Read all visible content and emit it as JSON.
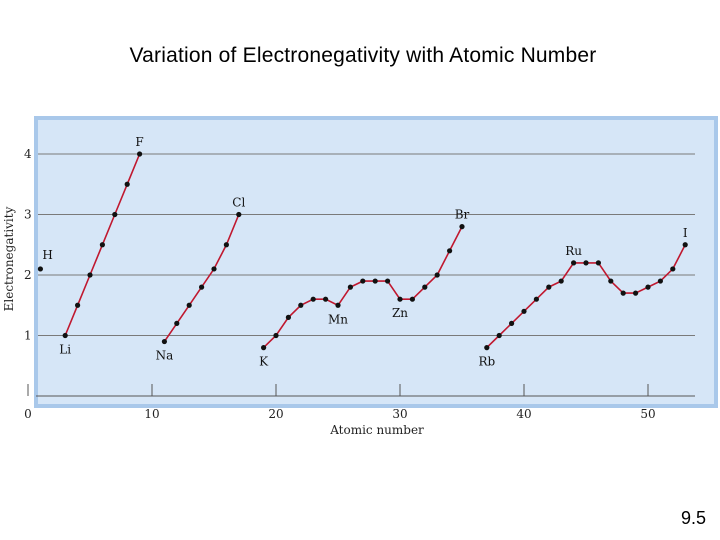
{
  "slide": {
    "title": "Variation of Electronegativity with Atomic Number",
    "number": "9.5"
  },
  "chart_data": {
    "type": "line",
    "title": "Variation of Electronegativity with Atomic Number",
    "xlabel": "Atomic number",
    "ylabel": "Electronegativity",
    "xlim": [
      0,
      55
    ],
    "ylim": [
      0,
      4.4
    ],
    "xticks": [
      0,
      10,
      20,
      30,
      40,
      50
    ],
    "yticks": [
      1,
      2,
      3,
      4
    ],
    "grid": true,
    "colors": {
      "plot_background": "#d6e6f7",
      "plot_border": "#a9c8ea",
      "line": "#c0182f",
      "point": "#111111",
      "grid": "#7a7a7a"
    },
    "isolated_points": [
      {
        "x": 1,
        "y": 2.1
      }
    ],
    "segments": [
      {
        "x": [
          3,
          4,
          5,
          6,
          7,
          8,
          9
        ],
        "y": [
          1.0,
          1.5,
          2.0,
          2.5,
          3.0,
          3.5,
          4.0
        ]
      },
      {
        "x": [
          11,
          12,
          13,
          14,
          15,
          16,
          17
        ],
        "y": [
          0.9,
          1.2,
          1.5,
          1.8,
          2.1,
          2.5,
          3.0
        ]
      },
      {
        "x": [
          19,
          20,
          21,
          22,
          23,
          24,
          25,
          26,
          27,
          28,
          29,
          30,
          31,
          32,
          33,
          34,
          35
        ],
        "y": [
          0.8,
          1.0,
          1.3,
          1.5,
          1.6,
          1.6,
          1.5,
          1.8,
          1.9,
          1.9,
          1.9,
          1.6,
          1.6,
          1.8,
          2.0,
          2.4,
          2.8
        ]
      },
      {
        "x": [
          37,
          38,
          39,
          40,
          41,
          42,
          43,
          44,
          45,
          46,
          47,
          48,
          49,
          50,
          51,
          52,
          53
        ],
        "y": [
          0.8,
          1.0,
          1.2,
          1.4,
          1.6,
          1.8,
          1.9,
          2.2,
          2.2,
          2.2,
          1.9,
          1.7,
          1.7,
          1.8,
          1.9,
          2.1,
          2.5
        ]
      }
    ],
    "labels": [
      {
        "text": "H",
        "x": 1,
        "y": 2.1,
        "pos": "above-right"
      },
      {
        "text": "F",
        "x": 9,
        "y": 4.0,
        "pos": "above"
      },
      {
        "text": "Li",
        "x": 3,
        "y": 1.0,
        "pos": "below"
      },
      {
        "text": "Cl",
        "x": 17,
        "y": 3.0,
        "pos": "above"
      },
      {
        "text": "Na",
        "x": 11,
        "y": 0.9,
        "pos": "below"
      },
      {
        "text": "K",
        "x": 19,
        "y": 0.8,
        "pos": "below"
      },
      {
        "text": "Mn",
        "x": 25,
        "y": 1.5,
        "pos": "below"
      },
      {
        "text": "Zn",
        "x": 30,
        "y": 1.6,
        "pos": "below"
      },
      {
        "text": "Br",
        "x": 35,
        "y": 2.8,
        "pos": "above"
      },
      {
        "text": "Ru",
        "x": 44,
        "y": 2.2,
        "pos": "above"
      },
      {
        "text": "Rb",
        "x": 37,
        "y": 0.8,
        "pos": "below"
      },
      {
        "text": "I",
        "x": 53,
        "y": 2.5,
        "pos": "above"
      }
    ]
  }
}
